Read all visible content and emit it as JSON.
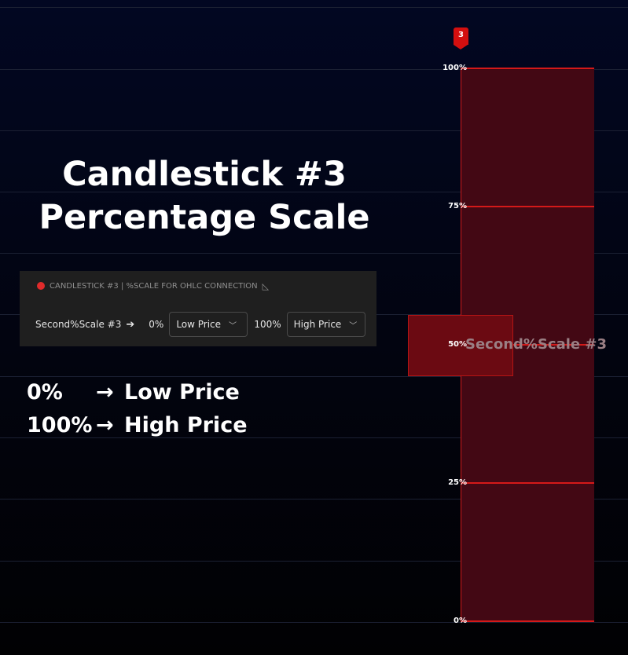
{
  "title": {
    "line1": "Candlestick #3",
    "line2": "Percentage Scale"
  },
  "settings_panel": {
    "header": "CANDLESTICK #3 | %SCALE FOR OHLC CONNECTION",
    "header_icon": "ruler-triangle-icon",
    "row": {
      "label": "Second%Scale #3",
      "arrow": "➔",
      "low_pct": "0%",
      "low_value": "Low Price",
      "high_pct": "100%",
      "high_value": "High Price"
    }
  },
  "mapping": [
    {
      "pct": "0%",
      "arrow": "→",
      "target": "Low Price"
    },
    {
      "pct": "100%",
      "arrow": "→",
      "target": "High Price"
    }
  ],
  "scale": {
    "marker": "3",
    "levels": [
      "100%",
      "75%",
      "50%",
      "25%",
      "0%"
    ],
    "series_label": "Second%Scale #3",
    "highlight_level": "50%"
  },
  "colors": {
    "background": "#020722",
    "accent_red": "#d41919",
    "scale_fill": "#430814",
    "panel": "#1f1f1f"
  }
}
